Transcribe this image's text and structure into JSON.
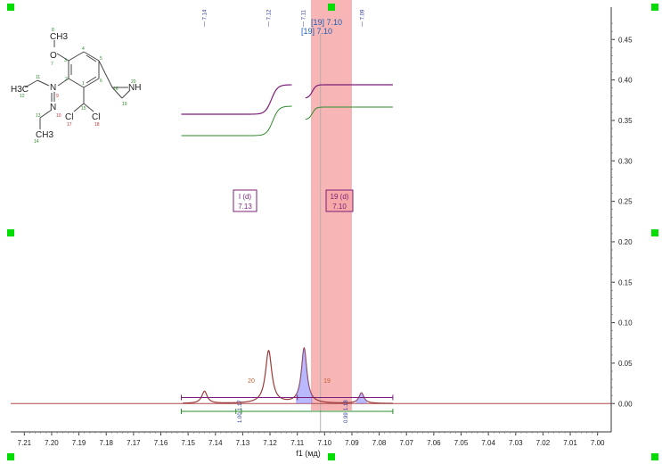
{
  "chart_data": {
    "type": "line",
    "xlabel": "f1 (мд)",
    "x_ticks": [
      "7.21",
      "7.20",
      "7.19",
      "7.18",
      "7.17",
      "7.16",
      "7.15",
      "7.14",
      "7.13",
      "7.12",
      "7.11",
      "7.10",
      "7.09",
      "7.08",
      "7.07",
      "7.06",
      "7.05",
      "7.04",
      "7.03",
      "7.02",
      "7.01",
      "7.00"
    ],
    "x_range": [
      7.215,
      6.995
    ],
    "y_ticks": [
      "0.45",
      "0.40",
      "0.35",
      "0.30",
      "0.25",
      "0.20",
      "0.15",
      "0.10",
      "0.05",
      "0.00"
    ],
    "y_range": [
      -0.035,
      0.49
    ],
    "peak_markers": [
      {
        "label": "7.14",
        "x": 7.14
      },
      {
        "label": "7.12",
        "x": 7.12
      },
      {
        "label": "7.11",
        "x": 7.11
      },
      {
        "label": "7.09",
        "x": 7.09
      }
    ],
    "peak_labels_extra": [
      {
        "text": "[19] 7.10"
      },
      {
        "text": "[19]  7.10"
      }
    ],
    "spectrum_peaks": [
      {
        "x": 7.144,
        "height": 0.015,
        "width": 0.0012
      },
      {
        "x": 7.1205,
        "height": 0.065,
        "width": 0.0014
      },
      {
        "x": 7.1075,
        "height": 0.068,
        "width": 0.0012
      },
      {
        "x": 7.0865,
        "height": 0.013,
        "width": 0.0011
      }
    ],
    "highlight_region": [
      7.105,
      7.09
    ],
    "multiplets": [
      {
        "id": "20",
        "name": "I (d)",
        "shift": "7.13",
        "label_number": "20"
      },
      {
        "id": "19",
        "name": "19 (d)",
        "shift": "7.10",
        "label_number": "19"
      }
    ],
    "integrals": [
      {
        "range": [
          7.15,
          7.1
        ],
        "values": [
          "1.00",
          "1.17"
        ]
      },
      {
        "range": [
          7.1,
          7.075
        ],
        "values": [
          "0.99",
          "1.18"
        ]
      }
    ],
    "colors": {
      "spectrum": "#8b3a3a",
      "integral_purple": "#7a1f7a",
      "integral_green": "#2e8b2e",
      "highlight": "#f4a0a0",
      "handles": "#00e000",
      "axis": "#333333",
      "blue_label": "#1a5fb4"
    }
  },
  "molecule": {
    "atoms": [
      {
        "label": "O",
        "num": "7"
      },
      {
        "label": "CH3",
        "num": "8"
      },
      {
        "label": "H3C",
        "num": "12"
      },
      {
        "label": "N",
        "num": "9"
      },
      {
        "label": "N",
        "num": "10"
      },
      {
        "label": "CH3",
        "num": "14"
      },
      {
        "label": "Cl",
        "num": "17"
      },
      {
        "label": "Cl",
        "num": "18"
      },
      {
        "label": "NH",
        "num": "20"
      }
    ],
    "numbers": [
      "1",
      "2",
      "3",
      "4",
      "5",
      "6",
      "11",
      "13",
      "15",
      "16",
      "19"
    ]
  }
}
